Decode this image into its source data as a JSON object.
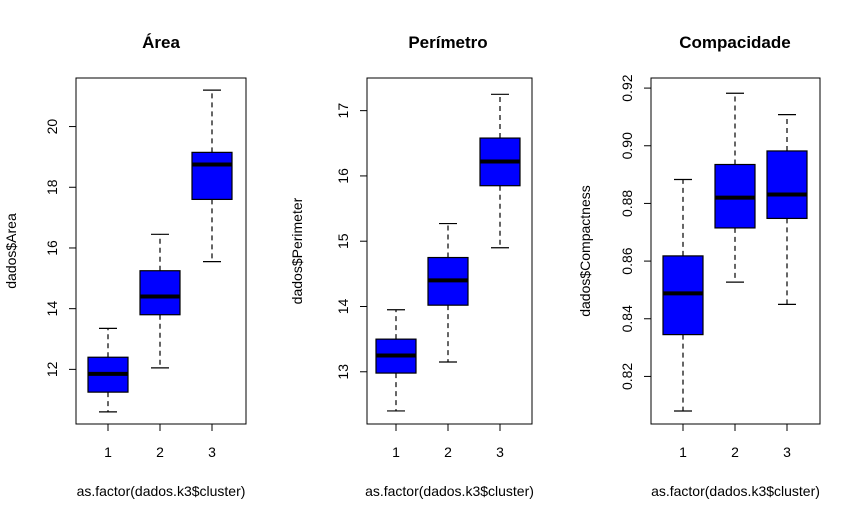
{
  "chart_data": [
    {
      "type": "boxplot",
      "title": "Área",
      "xlabel": "as.factor(dados.k3$cluster)",
      "ylabel": "dados$Area",
      "categories": [
        "1",
        "2",
        "3"
      ],
      "ylim": [
        10.2,
        21.6
      ],
      "yticks": [
        "12",
        "14",
        "16",
        "18",
        "20"
      ],
      "yticks_values": [
        12,
        14,
        16,
        18,
        20
      ],
      "box_color": "#0000ff",
      "boxes": [
        {
          "whisker_low": 10.6,
          "q1": 11.25,
          "median": 11.85,
          "q3": 12.4,
          "whisker_high": 13.35
        },
        {
          "whisker_low": 12.05,
          "q1": 13.8,
          "median": 14.4,
          "q3": 15.25,
          "whisker_high": 16.45
        },
        {
          "whisker_low": 15.55,
          "q1": 17.6,
          "median": 18.75,
          "q3": 19.15,
          "whisker_high": 21.2
        }
      ]
    },
    {
      "type": "boxplot",
      "title": "Perímetro",
      "xlabel": "as.factor(dados.k3$cluster)",
      "ylabel": "dados$Perimeter",
      "categories": [
        "1",
        "2",
        "3"
      ],
      "ylim": [
        12.2,
        17.5
      ],
      "yticks": [
        "13",
        "14",
        "15",
        "16",
        "17"
      ],
      "yticks_values": [
        13,
        14,
        15,
        16,
        17
      ],
      "box_color": "#0000ff",
      "boxes": [
        {
          "whisker_low": 12.4,
          "q1": 12.98,
          "median": 13.25,
          "q3": 13.5,
          "whisker_high": 13.95
        },
        {
          "whisker_low": 13.15,
          "q1": 14.02,
          "median": 14.4,
          "q3": 14.75,
          "whisker_high": 15.27
        },
        {
          "whisker_low": 14.9,
          "q1": 15.85,
          "median": 16.22,
          "q3": 16.58,
          "whisker_high": 17.25
        }
      ]
    },
    {
      "type": "boxplot",
      "title": "Compacidade",
      "xlabel": "as.factor(dados.k3$cluster)",
      "ylabel": "dados$Compactness",
      "categories": [
        "1",
        "2",
        "3"
      ],
      "ylim": [
        0.8035,
        0.9235
      ],
      "yticks": [
        "0.82",
        "0.84",
        "0.86",
        "0.88",
        "0.90",
        "0.92"
      ],
      "yticks_values": [
        0.82,
        0.84,
        0.86,
        0.88,
        0.9,
        0.92
      ],
      "box_color": "#0000ff",
      "boxes": [
        {
          "whisker_low": 0.808,
          "q1": 0.8345,
          "median": 0.8488,
          "q3": 0.8618,
          "whisker_high": 0.8883
        },
        {
          "whisker_low": 0.8527,
          "q1": 0.8715,
          "median": 0.882,
          "q3": 0.8935,
          "whisker_high": 0.9182
        },
        {
          "whisker_low": 0.845,
          "q1": 0.8748,
          "median": 0.8831,
          "q3": 0.8982,
          "whisker_high": 0.9108
        }
      ]
    }
  ]
}
